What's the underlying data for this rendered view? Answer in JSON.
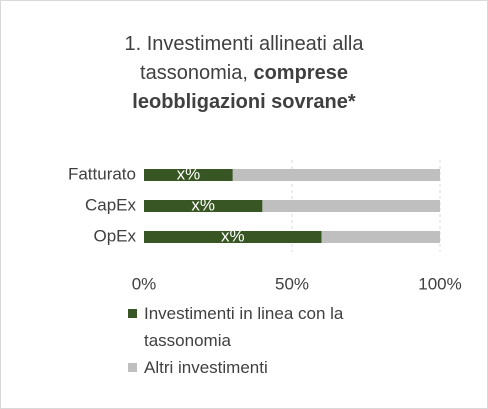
{
  "chart_data": {
    "type": "stacked_bar_horizontal",
    "title": "1. Investimenti allineati alla tassonomia,",
    "title_bold": "comprese leobbligazioni sovrane*",
    "categories": [
      "Fatturato",
      "CapEx",
      "OpEx"
    ],
    "series": [
      {
        "name": "Investimenti in linea con la tassonomia",
        "color": "#375623",
        "values": [
          30,
          40,
          60
        ],
        "value_labels": [
          "x%",
          "x%",
          "x%"
        ]
      },
      {
        "name": "Altri investimenti",
        "color": "#bfbfbf",
        "values": [
          70,
          60,
          40
        ]
      }
    ],
    "xlim": [
      0,
      100
    ],
    "xticks": [
      {
        "value": 0,
        "label": "0%"
      },
      {
        "value": 50,
        "label": "50%"
      },
      {
        "value": 100,
        "label": "100%"
      }
    ],
    "grid": true
  }
}
